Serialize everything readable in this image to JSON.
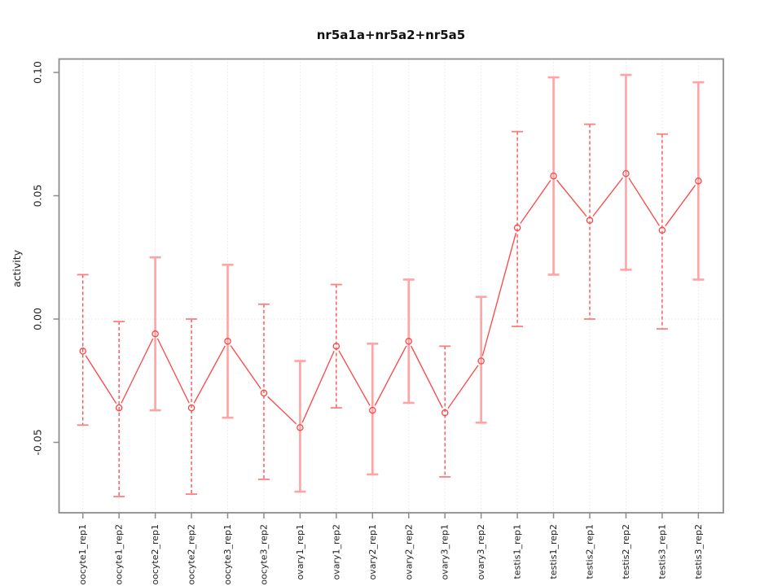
{
  "chart_data": {
    "type": "line",
    "title": "nr5a1a+nr5a2+nr5a5",
    "xlabel": "",
    "ylabel": "activity",
    "categories": [
      "oocyte1_rep1",
      "oocyte1_rep2",
      "oocyte2_rep1",
      "oocyte2_rep2",
      "oocyte3_rep1",
      "oocyte3_rep2",
      "ovary1_rep1",
      "ovary1_rep2",
      "ovary2_rep1",
      "ovary2_rep2",
      "ovary3_rep1",
      "ovary3_rep2",
      "testis1_rep1",
      "testis1_rep2",
      "testis2_rep1",
      "testis2_rep2",
      "testis3_rep1",
      "testis3_rep2"
    ],
    "series": [
      {
        "name": "activity",
        "values": [
          -0.013,
          -0.036,
          -0.006,
          -0.036,
          -0.009,
          -0.03,
          -0.044,
          -0.011,
          -0.037,
          -0.009,
          -0.038,
          -0.017,
          0.037,
          0.058,
          0.04,
          0.059,
          0.036,
          0.056
        ],
        "error_high": [
          0.018,
          -0.001,
          0.025,
          0.0,
          0.022,
          0.006,
          -0.017,
          0.014,
          -0.01,
          0.016,
          -0.011,
          0.009,
          0.076,
          0.098,
          0.079,
          0.099,
          0.075,
          0.096
        ],
        "error_low": [
          -0.043,
          -0.072,
          -0.037,
          -0.071,
          -0.04,
          -0.065,
          -0.07,
          -0.036,
          -0.063,
          -0.034,
          -0.064,
          -0.042,
          -0.003,
          0.018,
          0.0,
          0.02,
          -0.004,
          0.016
        ]
      }
    ],
    "error_bar_styles": [
      "dashed",
      "dashed",
      "solid",
      "dashed",
      "solid",
      "dashed",
      "solid",
      "dashed",
      "solid",
      "solid",
      "dashed",
      "solid",
      "dashed",
      "solid",
      "dashed",
      "solid",
      "dashed",
      "solid"
    ],
    "marker": "open-circle",
    "line_type": "points-joined-by-segments",
    "yticks": [
      -0.05,
      0.0,
      0.05,
      0.1
    ],
    "ytick_labels": [
      "-0.05",
      "0.00",
      "0.05",
      "0.10"
    ],
    "ylim": [
      -0.078,
      0.105
    ],
    "grid": {
      "vertical_dotted_per_category": true,
      "horizontal_zero_line_dotted": true
    },
    "legend_position": "none",
    "colors": {
      "series_line": "#ff4343",
      "point_stroke": "#ff4343",
      "error_dashed": "#ff4343",
      "error_dashed_cap": "#ff7f7f",
      "error_solid": "#ffa3a3",
      "gridline": "#dcdcdc",
      "zero_line": "#d6d6d6",
      "axis": "#8c8c8c",
      "text": "#1f1f1f",
      "background": "#ffffff"
    }
  }
}
